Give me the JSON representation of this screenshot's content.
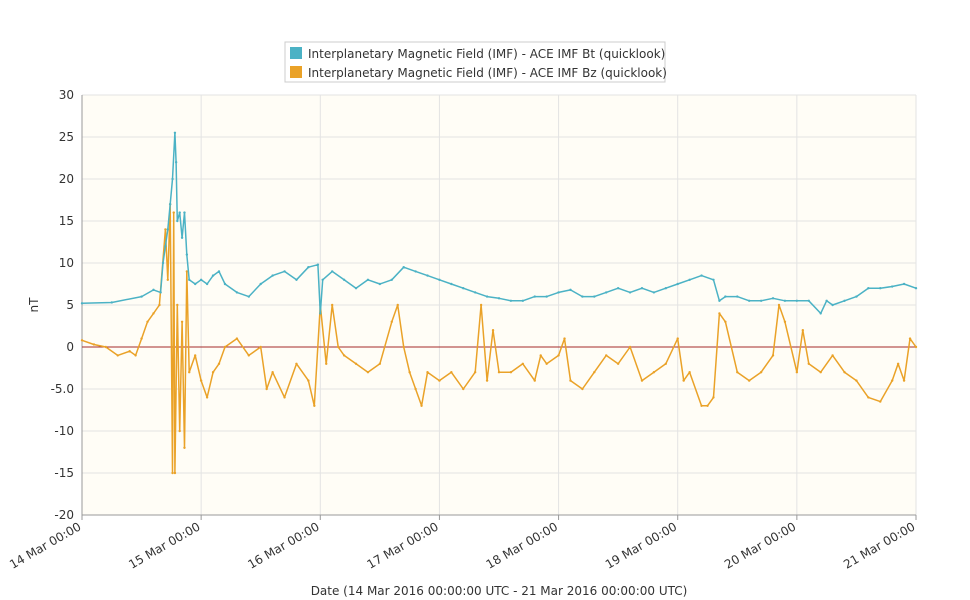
{
  "chart_data": {
    "type": "line",
    "title": "",
    "xlabel": "Date (14 Mar 2016 00:00:00 UTC - 21 Mar 2016 00:00:00 UTC)",
    "ylabel": "nT",
    "ylim": [
      -20,
      30
    ],
    "xlim_days": [
      0,
      7
    ],
    "yticks": [
      "30",
      "25",
      "20",
      "15",
      "10",
      "5",
      "0",
      "-5.0",
      "-10",
      "-15",
      "-20"
    ],
    "ytick_values": [
      30,
      25,
      20,
      15,
      10,
      5,
      0,
      -5,
      -10,
      -15,
      -20
    ],
    "xticks": [
      "14 Mar 00:00",
      "15 Mar 00:00",
      "16 Mar 00:00",
      "17 Mar 00:00",
      "18 Mar 00:00",
      "19 Mar 00:00",
      "20 Mar 00:00",
      "21 Mar 00:00"
    ],
    "grid": true,
    "legend_position": "top-center",
    "zero_line_color": "#a52a2a",
    "series": [
      {
        "name": "Interplanetary Magnetic Field (IMF) - ACE IMF Bt (quicklook)",
        "color": "#4bb2c5",
        "x": [
          0,
          0.25,
          0.5,
          0.6,
          0.66,
          0.68,
          0.7,
          0.72,
          0.74,
          0.76,
          0.78,
          0.79,
          0.8,
          0.82,
          0.84,
          0.86,
          0.88,
          0.9,
          0.95,
          1.0,
          1.05,
          1.1,
          1.15,
          1.2,
          1.3,
          1.4,
          1.5,
          1.6,
          1.7,
          1.8,
          1.9,
          1.98,
          2.0,
          2.02,
          2.1,
          2.2,
          2.3,
          2.4,
          2.5,
          2.6,
          2.7,
          2.8,
          2.9,
          3.0,
          3.1,
          3.2,
          3.3,
          3.4,
          3.5,
          3.6,
          3.7,
          3.8,
          3.9,
          4.0,
          4.1,
          4.2,
          4.3,
          4.4,
          4.5,
          4.6,
          4.7,
          4.8,
          4.9,
          5.0,
          5.1,
          5.2,
          5.3,
          5.35,
          5.4,
          5.5,
          5.6,
          5.7,
          5.8,
          5.9,
          6.0,
          6.1,
          6.2,
          6.25,
          6.3,
          6.4,
          6.5,
          6.6,
          6.7,
          6.8,
          6.9,
          7.0
        ],
        "y": [
          5.2,
          5.3,
          6,
          6.8,
          6.5,
          10,
          12,
          14,
          17,
          20,
          25.5,
          22,
          15,
          16,
          13,
          16,
          11,
          8,
          7.5,
          8,
          7.5,
          8.5,
          9,
          7.5,
          6.5,
          6,
          7.5,
          8.5,
          9,
          8,
          9.5,
          9.8,
          4,
          8,
          9,
          8,
          7,
          8,
          7.5,
          8,
          9.5,
          9,
          8.5,
          8,
          7.5,
          7,
          6.5,
          6,
          5.8,
          5.5,
          5.5,
          6,
          6,
          6.5,
          6.8,
          6,
          6,
          6.5,
          7,
          6.5,
          7,
          6.5,
          7,
          7.5,
          8,
          8.5,
          8,
          5.5,
          6,
          6,
          5.5,
          5.5,
          5.8,
          5.5,
          5.5,
          5.5,
          4,
          5.5,
          5,
          5.5,
          6,
          7,
          7,
          7.2,
          7.5,
          7
        ]
      },
      {
        "name": "Interplanetary Magnetic Field (IMF) - ACE IMF Bz (quicklook)",
        "color": "#eaa228",
        "x": [
          0,
          0.1,
          0.2,
          0.3,
          0.4,
          0.45,
          0.5,
          0.55,
          0.6,
          0.65,
          0.7,
          0.72,
          0.74,
          0.76,
          0.77,
          0.78,
          0.8,
          0.82,
          0.84,
          0.86,
          0.88,
          0.9,
          0.95,
          1.0,
          1.05,
          1.1,
          1.15,
          1.2,
          1.3,
          1.4,
          1.5,
          1.55,
          1.6,
          1.7,
          1.8,
          1.9,
          1.95,
          2.0,
          2.05,
          2.1,
          2.15,
          2.2,
          2.3,
          2.4,
          2.5,
          2.6,
          2.65,
          2.7,
          2.75,
          2.8,
          2.85,
          2.9,
          3.0,
          3.1,
          3.2,
          3.3,
          3.35,
          3.4,
          3.45,
          3.5,
          3.6,
          3.7,
          3.8,
          3.85,
          3.9,
          4.0,
          4.05,
          4.1,
          4.2,
          4.3,
          4.4,
          4.5,
          4.6,
          4.7,
          4.8,
          4.9,
          5.0,
          5.05,
          5.1,
          5.2,
          5.25,
          5.3,
          5.35,
          5.4,
          5.5,
          5.6,
          5.7,
          5.8,
          5.85,
          5.9,
          6.0,
          6.05,
          6.1,
          6.2,
          6.3,
          6.4,
          6.5,
          6.6,
          6.7,
          6.8,
          6.85,
          6.9,
          6.95,
          7.0
        ],
        "y": [
          0.8,
          0.3,
          0,
          -1,
          -0.5,
          -1,
          1,
          3,
          4,
          5,
          14,
          8,
          17,
          -15,
          16,
          -15,
          5,
          -10,
          3,
          -12,
          9,
          -3,
          -1,
          -4,
          -6,
          -3,
          -2,
          0,
          1,
          -1,
          0,
          -5,
          -3,
          -6,
          -2,
          -4,
          -7,
          5,
          -2,
          5,
          0,
          -1,
          -2,
          -3,
          -2,
          3,
          5,
          0,
          -3,
          -5,
          -7,
          -3,
          -4,
          -3,
          -5,
          -3,
          5,
          -4,
          2,
          -3,
          -3,
          -2,
          -4,
          -1,
          -2,
          -1,
          1,
          -4,
          -5,
          -3,
          -1,
          -2,
          0,
          -4,
          -3,
          -2,
          1,
          -4,
          -3,
          -7,
          -7,
          -6,
          4,
          3,
          -3,
          -4,
          -3,
          -1,
          5,
          3,
          -3,
          2,
          -2,
          -3,
          -1,
          -3,
          -4,
          -6,
          -6.5,
          -4,
          -2,
          -4,
          1,
          0
        ]
      }
    ]
  }
}
